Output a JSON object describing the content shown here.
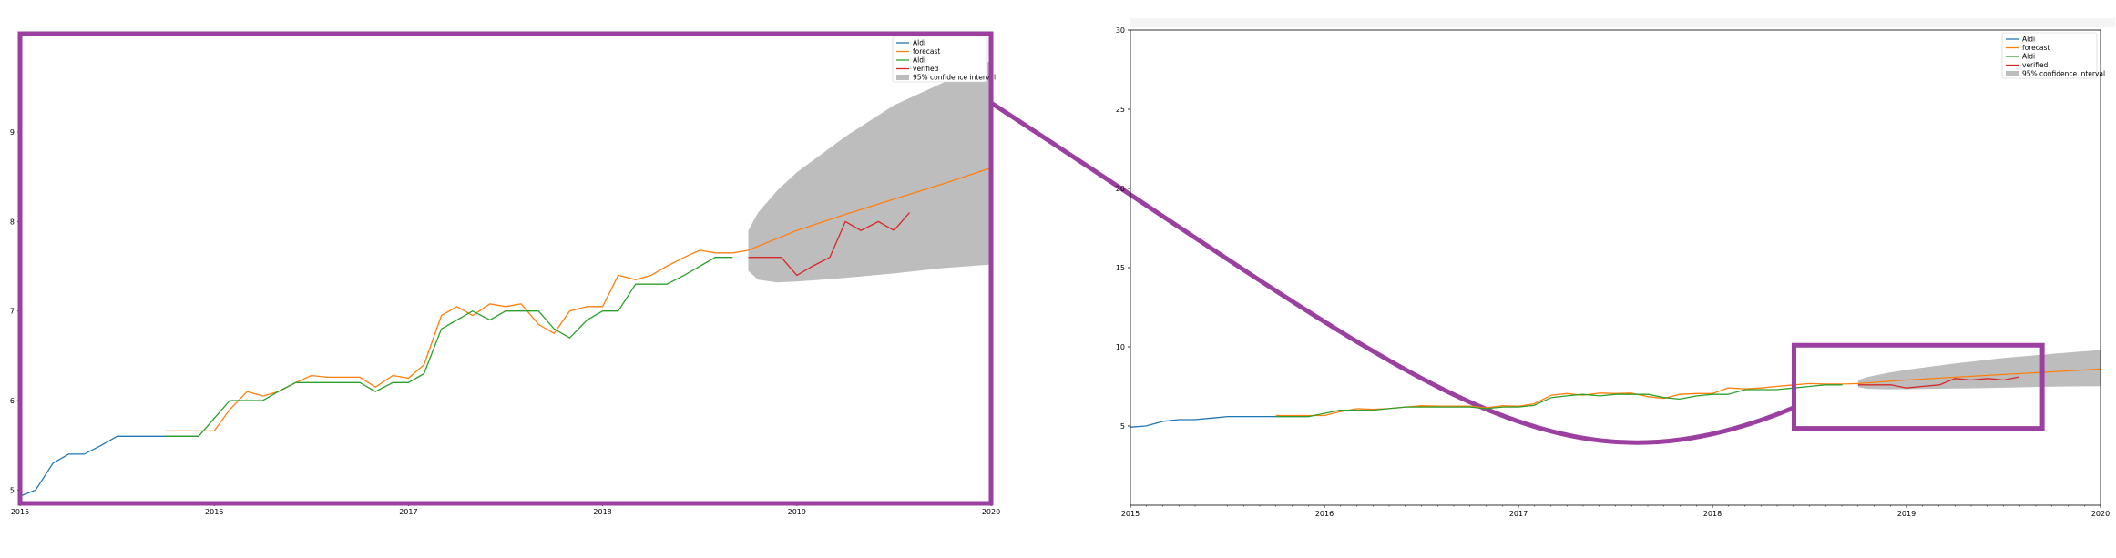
{
  "colors": {
    "obs": "#1f77b4",
    "forecast": "#ff7f0e",
    "obs2": "#2ca02c",
    "verified": "#d62728",
    "ci": "#bdbdbd",
    "highlight": "#9b3fa0"
  },
  "chart_data": [
    {
      "type": "line",
      "xlim": [
        2015,
        2020
      ],
      "ylim": [
        4.85,
        10.1
      ],
      "xticks": [
        "2015",
        "2016",
        "2017",
        "2018",
        "2019",
        "2020"
      ],
      "yticks": [
        5,
        6,
        7,
        8,
        9
      ],
      "grid": false,
      "legend_placement": "top-right",
      "legend": [
        "Aldi",
        "forecast",
        "Aldi",
        "verified",
        "95% confidence interval"
      ],
      "series": [
        {
          "name": "Aldi",
          "color": "obs",
          "x": [
            2015.0,
            2015.08,
            2015.17,
            2015.25,
            2015.33,
            2015.42,
            2015.5,
            2015.58,
            2015.67,
            2015.75,
            2015.83,
            2015.92
          ],
          "y": [
            4.93,
            5.0,
            5.3,
            5.4,
            5.4,
            5.5,
            5.6,
            5.6,
            5.6,
            5.6,
            5.6,
            5.6
          ]
        },
        {
          "name": "forecast",
          "color": "forecast",
          "x": [
            2015.75,
            2015.83,
            2015.92,
            2016.0,
            2016.08,
            2016.17,
            2016.25,
            2016.33,
            2016.42,
            2016.5,
            2016.58,
            2016.67,
            2016.75,
            2016.83,
            2016.92,
            2017.0,
            2017.08,
            2017.17,
            2017.25,
            2017.33,
            2017.42,
            2017.5,
            2017.58,
            2017.67,
            2017.75,
            2017.83,
            2017.92,
            2018.0,
            2018.08,
            2018.17,
            2018.25,
            2018.33,
            2018.42,
            2018.5,
            2018.58,
            2018.67,
            2018.75,
            2019.0,
            2019.25,
            2019.5,
            2019.75,
            2020.0
          ],
          "y": [
            5.66,
            5.66,
            5.66,
            5.66,
            5.9,
            6.1,
            6.05,
            6.1,
            6.2,
            6.28,
            6.26,
            6.26,
            6.26,
            6.15,
            6.28,
            6.25,
            6.4,
            6.95,
            7.05,
            6.95,
            7.08,
            7.05,
            7.08,
            6.85,
            6.75,
            7.0,
            7.05,
            7.05,
            7.4,
            7.35,
            7.4,
            7.5,
            7.6,
            7.68,
            7.65,
            7.65,
            7.68,
            7.9,
            8.08,
            8.25,
            8.42,
            8.6
          ]
        },
        {
          "name": "Aldi",
          "color": "obs2",
          "x": [
            2015.75,
            2015.83,
            2015.92,
            2016.0,
            2016.08,
            2016.17,
            2016.25,
            2016.33,
            2016.42,
            2016.5,
            2016.58,
            2016.67,
            2016.75,
            2016.83,
            2016.92,
            2017.0,
            2017.08,
            2017.17,
            2017.25,
            2017.33,
            2017.42,
            2017.5,
            2017.58,
            2017.67,
            2017.75,
            2017.83,
            2017.92,
            2018.0,
            2018.08,
            2018.17,
            2018.25,
            2018.33,
            2018.42,
            2018.5,
            2018.58,
            2018.67
          ],
          "y": [
            5.6,
            5.6,
            5.6,
            5.8,
            6.0,
            6.0,
            6.0,
            6.1,
            6.2,
            6.2,
            6.2,
            6.2,
            6.2,
            6.1,
            6.2,
            6.2,
            6.3,
            6.8,
            6.9,
            7.0,
            6.9,
            7.0,
            7.0,
            7.0,
            6.8,
            6.7,
            6.9,
            7.0,
            7.0,
            7.3,
            7.3,
            7.3,
            7.4,
            7.5,
            7.6,
            7.6
          ]
        },
        {
          "name": "verified",
          "color": "verified",
          "x": [
            2018.75,
            2018.83,
            2018.92,
            2019.0,
            2019.08,
            2019.17,
            2019.25,
            2019.33,
            2019.42,
            2019.5,
            2019.58
          ],
          "y": [
            7.6,
            7.6,
            7.6,
            7.4,
            7.5,
            7.6,
            8.0,
            7.9,
            8.0,
            7.9,
            8.1
          ]
        }
      ],
      "confidence_interval": {
        "name": "95% confidence interval",
        "x": [
          2018.75,
          2018.8,
          2018.9,
          2019.0,
          2019.25,
          2019.5,
          2019.75,
          2020.0
        ],
        "upper": [
          7.9,
          8.1,
          8.35,
          8.55,
          8.95,
          9.3,
          9.55,
          9.8
        ],
        "lower": [
          7.45,
          7.35,
          7.32,
          7.33,
          7.37,
          7.42,
          7.48,
          7.52
        ]
      }
    },
    {
      "type": "line",
      "xlim": [
        2015,
        2020
      ],
      "ylim": [
        0,
        30
      ],
      "xticks": [
        "2015",
        "2016",
        "2017",
        "2018",
        "2019",
        "2020"
      ],
      "yticks": [
        5,
        10,
        15,
        20,
        25,
        30
      ],
      "grid": false,
      "legend_placement": "top-right",
      "legend": [
        "Aldi",
        "forecast",
        "Aldi",
        "verified",
        "95% confidence interval"
      ],
      "series": [
        {
          "name": "Aldi",
          "color": "obs",
          "x": [
            2015.0,
            2015.08,
            2015.17,
            2015.25,
            2015.33,
            2015.42,
            2015.5,
            2015.58,
            2015.67,
            2015.75,
            2015.83,
            2015.92
          ],
          "y": [
            4.93,
            5.0,
            5.3,
            5.4,
            5.4,
            5.5,
            5.6,
            5.6,
            5.6,
            5.6,
            5.6,
            5.6
          ]
        },
        {
          "name": "forecast",
          "color": "forecast",
          "x": [
            2015.75,
            2015.83,
            2015.92,
            2016.0,
            2016.08,
            2016.17,
            2016.25,
            2016.33,
            2016.42,
            2016.5,
            2016.58,
            2016.67,
            2016.75,
            2016.83,
            2016.92,
            2017.0,
            2017.08,
            2017.17,
            2017.25,
            2017.33,
            2017.42,
            2017.5,
            2017.58,
            2017.67,
            2017.75,
            2017.83,
            2017.92,
            2018.0,
            2018.08,
            2018.17,
            2018.25,
            2018.33,
            2018.42,
            2018.5,
            2018.58,
            2018.67,
            2018.75,
            2019.0,
            2019.25,
            2019.5,
            2019.75,
            2020.0
          ],
          "y": [
            5.66,
            5.66,
            5.66,
            5.66,
            5.9,
            6.1,
            6.05,
            6.1,
            6.2,
            6.28,
            6.26,
            6.26,
            6.26,
            6.15,
            6.28,
            6.25,
            6.4,
            6.95,
            7.05,
            6.95,
            7.08,
            7.05,
            7.08,
            6.85,
            6.75,
            7.0,
            7.05,
            7.05,
            7.4,
            7.35,
            7.4,
            7.5,
            7.6,
            7.68,
            7.65,
            7.65,
            7.68,
            7.9,
            8.08,
            8.25,
            8.42,
            8.6
          ]
        },
        {
          "name": "Aldi",
          "color": "obs2",
          "x": [
            2015.75,
            2015.83,
            2015.92,
            2016.0,
            2016.08,
            2016.17,
            2016.25,
            2016.33,
            2016.42,
            2016.5,
            2016.58,
            2016.67,
            2016.75,
            2016.83,
            2016.92,
            2017.0,
            2017.08,
            2017.17,
            2017.25,
            2017.33,
            2017.42,
            2017.5,
            2017.58,
            2017.67,
            2017.75,
            2017.83,
            2017.92,
            2018.0,
            2018.08,
            2018.17,
            2018.25,
            2018.33,
            2018.42,
            2018.5,
            2018.58,
            2018.67
          ],
          "y": [
            5.6,
            5.6,
            5.6,
            5.8,
            6.0,
            6.0,
            6.0,
            6.1,
            6.2,
            6.2,
            6.2,
            6.2,
            6.2,
            6.1,
            6.2,
            6.2,
            6.3,
            6.8,
            6.9,
            7.0,
            6.9,
            7.0,
            7.0,
            7.0,
            6.8,
            6.7,
            6.9,
            7.0,
            7.0,
            7.3,
            7.3,
            7.3,
            7.4,
            7.5,
            7.6,
            7.6
          ]
        },
        {
          "name": "verified",
          "color": "verified",
          "x": [
            2018.75,
            2018.83,
            2018.92,
            2019.0,
            2019.08,
            2019.17,
            2019.25,
            2019.33,
            2019.42,
            2019.5,
            2019.58
          ],
          "y": [
            7.6,
            7.6,
            7.6,
            7.4,
            7.5,
            7.6,
            8.0,
            7.9,
            8.0,
            7.9,
            8.1
          ]
        }
      ],
      "confidence_interval": {
        "name": "95% confidence interval",
        "x": [
          2018.75,
          2018.8,
          2018.9,
          2019.0,
          2019.25,
          2019.5,
          2019.75,
          2020.0
        ],
        "upper": [
          7.9,
          8.1,
          8.35,
          8.55,
          8.95,
          9.3,
          9.55,
          9.8
        ],
        "lower": [
          7.45,
          7.35,
          7.32,
          7.33,
          7.37,
          7.42,
          7.48,
          7.52
        ]
      },
      "zoom_region": {
        "x": [
          2018.42,
          2019.7
        ],
        "y": [
          4.85,
          10.1
        ]
      }
    }
  ]
}
